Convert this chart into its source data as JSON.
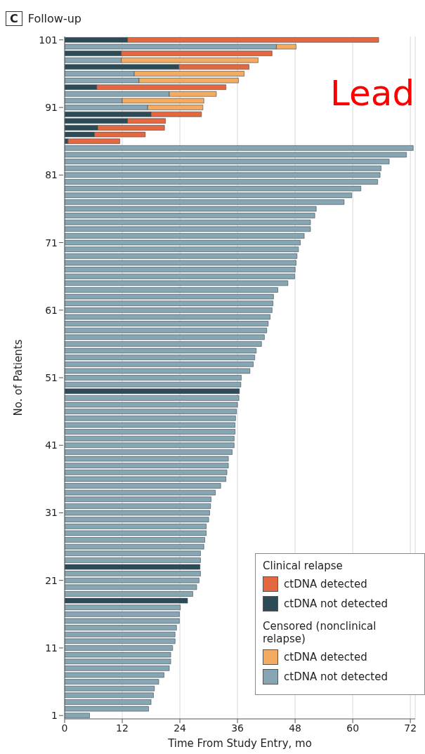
{
  "chart_data": {
    "type": "bar",
    "orientation": "horizontal",
    "stacked": true,
    "title": "Follow-up",
    "xlabel": "Time From Study Entry, mo",
    "ylabel": "No. of Patients",
    "annotations": [
      "C",
      "Clinical relapse",
      "Censored (nonclinical relapse)",
      "Lead"
    ],
    "categories": [
      "101",
      null,
      null,
      null,
      null,
      null,
      null,
      null,
      null,
      null,
      "91",
      null,
      null,
      null,
      null,
      null,
      null,
      null,
      null,
      null,
      "81",
      null,
      null,
      null,
      null,
      null,
      null,
      null,
      null,
      null,
      "71",
      null,
      null,
      null,
      null,
      null,
      null,
      null,
      null,
      null,
      "61",
      null,
      null,
      null,
      null,
      null,
      null,
      null,
      null,
      null,
      "51",
      null,
      null,
      null,
      null,
      null,
      null,
      null,
      null,
      null,
      "41",
      null,
      null,
      null,
      null,
      null,
      null,
      null,
      null,
      null,
      "31",
      null,
      null,
      null,
      null,
      null,
      null,
      null,
      null,
      null,
      "21",
      null,
      null,
      null,
      null,
      null,
      null,
      null,
      null,
      null,
      "11",
      null,
      null,
      null,
      null,
      null,
      null,
      null,
      null,
      null,
      "1"
    ],
    "xlim": [
      0,
      73
    ],
    "xticks": [
      0,
      12,
      24,
      36,
      48,
      60,
      72
    ],
    "grid": "x",
    "legend": "bottom right",
    "series": [
      {
        "name": "ctDNA not detected",
        "color": "#2d4b57",
        "values": [
          13.1,
          null,
          11.8,
          null,
          23.8,
          null,
          null,
          6.7,
          null,
          null,
          null,
          18.0,
          13.1,
          6.9,
          6.2,
          0.7,
          null,
          null,
          null,
          null,
          null,
          null,
          null,
          null,
          null,
          null,
          null,
          null,
          null,
          null,
          null,
          null,
          null,
          null,
          null,
          null,
          null,
          null,
          null,
          null,
          null,
          null,
          null,
          null,
          null,
          null,
          null,
          null,
          null,
          null,
          null,
          null,
          36.4,
          null,
          null,
          null,
          null,
          null,
          null,
          null,
          null,
          null,
          null,
          null,
          null,
          null,
          null,
          null,
          null,
          null,
          null,
          null,
          null,
          null,
          null,
          null,
          null,
          null,
          28.2,
          null,
          null,
          null,
          null,
          25.6,
          null,
          null,
          null,
          null,
          null,
          null,
          null,
          null,
          null,
          null,
          null,
          null,
          null,
          null,
          null,
          null,
          null
        ]
      },
      {
        "name": "ctDNA not detected",
        "color": "#87a6b4",
        "values": [
          null,
          44.1,
          null,
          11.8,
          null,
          14.5,
          15.5,
          null,
          21.8,
          12.0,
          17.3,
          null,
          null,
          null,
          null,
          null,
          72.6,
          71.2,
          67.6,
          65.9,
          65.7,
          65.2,
          61.7,
          59.8,
          58.2,
          52.4,
          52.1,
          51.2,
          51.2,
          49.9,
          49.1,
          48.7,
          48.4,
          48.2,
          48.0,
          47.9,
          46.5,
          44.4,
          43.5,
          43.4,
          43.2,
          42.8,
          42.4,
          42.1,
          41.6,
          41.0,
          39.9,
          39.6,
          39.3,
          38.6,
          36.8,
          36.7,
          null,
          36.3,
          36.0,
          35.8,
          35.6,
          35.5,
          35.5,
          35.3,
          35.3,
          34.9,
          34.1,
          34.1,
          33.8,
          33.6,
          32.5,
          31.4,
          30.5,
          30.4,
          30.2,
          30.0,
          29.5,
          29.5,
          29.2,
          29.0,
          28.3,
          28.3,
          null,
          28.3,
          28.0,
          27.5,
          26.7,
          null,
          24.1,
          23.9,
          23.9,
          23.3,
          23.0,
          23.0,
          22.5,
          22.1,
          22.1,
          21.8,
          20.7,
          19.6,
          18.7,
          18.5,
          18.0,
          17.5,
          5.2
        ]
      },
      {
        "name": "ctDNA detected",
        "color": "#e5673f",
        "values": [
          52.3,
          null,
          31.4,
          null,
          14.6,
          null,
          null,
          26.9,
          null,
          null,
          null,
          10.5,
          7.9,
          13.9,
          10.6,
          10.8,
          null,
          null,
          null,
          null,
          null,
          null,
          null,
          null,
          null,
          null,
          null,
          null,
          null,
          null,
          null,
          null,
          null,
          null,
          null,
          null,
          null,
          null,
          null,
          null,
          null,
          null,
          null,
          null,
          null,
          null,
          null,
          null,
          null,
          null,
          null,
          null,
          null,
          null,
          null,
          null,
          null,
          null,
          null,
          null,
          null,
          null,
          null,
          null,
          null,
          null,
          null,
          null,
          null,
          null,
          null,
          null,
          null,
          null,
          null,
          null,
          null,
          null,
          null,
          null,
          null,
          null,
          null,
          null,
          null,
          null,
          null,
          null,
          null,
          null,
          null,
          null,
          null,
          null,
          null,
          null,
          null,
          null,
          null,
          null,
          null
        ]
      },
      {
        "name": "ctDNA detected",
        "color": "#f3ab62",
        "values": [
          null,
          4.1,
          null,
          28.5,
          null,
          22.9,
          20.7,
          null,
          9.8,
          17.0,
          11.5,
          null,
          null,
          null,
          null,
          null,
          null,
          null,
          null,
          null,
          null,
          null,
          null,
          null,
          null,
          null,
          null,
          null,
          null,
          null,
          null,
          null,
          null,
          null,
          null,
          null,
          null,
          null,
          null,
          null,
          null,
          null,
          null,
          null,
          null,
          null,
          null,
          null,
          null,
          null,
          null,
          null,
          null,
          null,
          null,
          null,
          null,
          null,
          null,
          null,
          null,
          null,
          null,
          null,
          null,
          null,
          null,
          null,
          null,
          null,
          null,
          null,
          null,
          null,
          null,
          null,
          null,
          null,
          null,
          null,
          null,
          null,
          null,
          null,
          null,
          null,
          null,
          null,
          null,
          null,
          null,
          null,
          null,
          null,
          null,
          null,
          null,
          null,
          null,
          null,
          null
        ]
      }
    ]
  }
}
